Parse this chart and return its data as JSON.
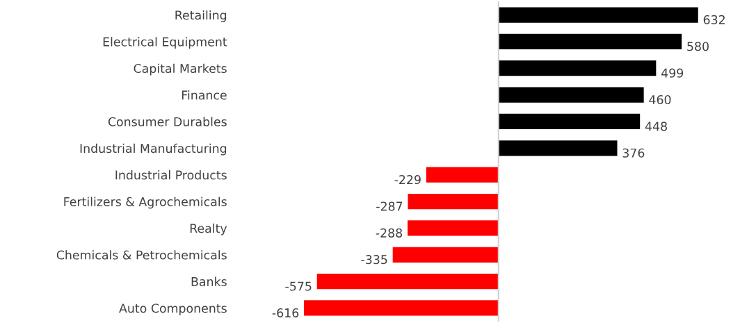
{
  "chart_data": {
    "type": "bar",
    "orientation": "horizontal",
    "data_labels": true,
    "grid": false,
    "categories": [
      "Retailing",
      "Electrical Equipment",
      "Capital Markets",
      "Finance",
      "Consumer Durables",
      "Industrial Manufacturing",
      "Industrial Products",
      "Fertilizers & Agrochemicals",
      "Realty",
      "Chemicals & Petrochemicals",
      "Banks",
      "Auto Components"
    ],
    "values": [
      632,
      580,
      499,
      460,
      448,
      376,
      -229,
      -287,
      -288,
      -335,
      -575,
      -616
    ],
    "colors": [
      "#000000",
      "#000000",
      "#000000",
      "#000000",
      "#000000",
      "#000000",
      "#ff0000",
      "#ff0000",
      "#ff0000",
      "#ff0000",
      "#ff0000",
      "#ff0000"
    ]
  }
}
